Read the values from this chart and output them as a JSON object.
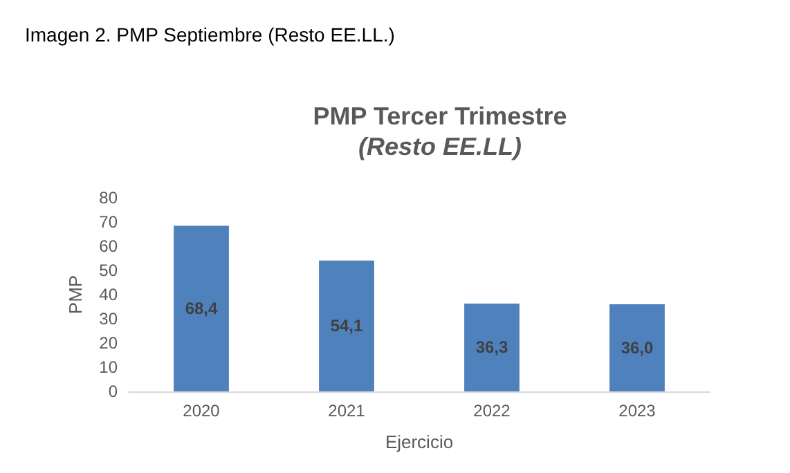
{
  "chart_data": {
    "type": "bar",
    "title": "PMP Tercer Trimestre",
    "subtitle": "(Resto EE.LL)",
    "xlabel": "Ejercicio",
    "ylabel": "PMP",
    "annotations": [
      "Imagen 2. PMP Septiembre (Resto EE.LL.)"
    ],
    "categories": [
      "2020",
      "2021",
      "2022",
      "2023"
    ],
    "values": [
      68.4,
      54.1,
      36.3,
      36.0
    ],
    "value_labels": [
      "68,4",
      "54,1",
      "36,3",
      "36,0"
    ],
    "color": "#4f81bd",
    "ylim": [
      0,
      80
    ],
    "yticks": [
      0,
      10,
      20,
      30,
      40,
      50,
      60,
      70,
      80
    ],
    "grid": false
  }
}
